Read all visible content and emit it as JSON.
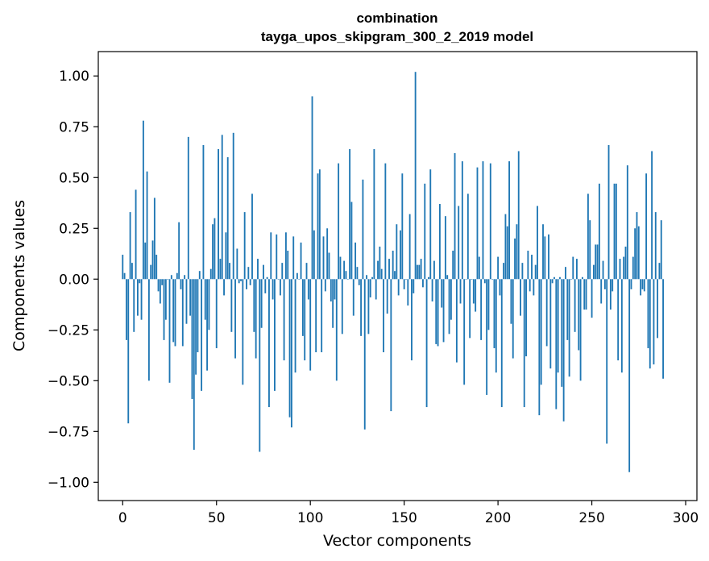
{
  "chart_data": {
    "type": "bar",
    "title": "combination",
    "subtitle": "tayga_upos_skipgram_300_2_2019 model",
    "xlabel": "Vector components",
    "ylabel": "Components values",
    "xlim": [
      -13,
      306
    ],
    "ylim": [
      -1.09,
      1.12
    ],
    "xticks": [
      0,
      50,
      100,
      150,
      200,
      250,
      300
    ],
    "xtick_labels": [
      "0",
      "50",
      "100",
      "150",
      "200",
      "250",
      "300"
    ],
    "yticks": [
      1.0,
      0.75,
      0.5,
      0.25,
      0.0,
      -0.25,
      -0.5,
      -0.75,
      -1.0
    ],
    "ytick_labels": [
      "1.00",
      "0.75",
      "0.50",
      "0.25",
      "0.00",
      "−0.25",
      "−0.50",
      "−0.75",
      "−1.00"
    ],
    "grid": false,
    "legend": "none",
    "bar_color": "#1f77b4",
    "x_start": 0,
    "values": [
      0.12,
      0.03,
      -0.3,
      -0.71,
      0.33,
      0.08,
      -0.26,
      0.44,
      -0.18,
      -0.02,
      -0.2,
      0.78,
      0.18,
      0.53,
      -0.5,
      0.07,
      0.19,
      0.4,
      0.12,
      -0.06,
      -0.12,
      -0.03,
      -0.3,
      -0.2,
      0.0,
      -0.51,
      0.02,
      -0.31,
      -0.33,
      0.03,
      0.28,
      -0.05,
      -0.33,
      0.02,
      -0.22,
      0.7,
      -0.18,
      -0.59,
      -0.84,
      -0.47,
      -0.36,
      0.04,
      -0.55,
      0.66,
      -0.2,
      -0.45,
      -0.25,
      0.05,
      0.27,
      0.3,
      -0.34,
      0.64,
      0.1,
      0.71,
      -0.08,
      0.23,
      0.6,
      0.08,
      -0.26,
      0.72,
      -0.39,
      0.15,
      -0.02,
      -0.01,
      -0.52,
      0.33,
      -0.05,
      0.06,
      -0.03,
      0.42,
      -0.26,
      -0.39,
      0.1,
      -0.85,
      -0.24,
      0.07,
      -0.07,
      0.01,
      -0.63,
      0.23,
      -0.1,
      -0.55,
      0.22,
      0.0,
      -0.08,
      0.08,
      -0.4,
      0.23,
      0.14,
      -0.68,
      -0.73,
      0.21,
      -0.46,
      0.03,
      0.0,
      0.18,
      -0.28,
      -0.4,
      0.08,
      -0.1,
      -0.45,
      0.9,
      0.24,
      -0.36,
      0.52,
      0.54,
      -0.36,
      0.21,
      -0.06,
      0.25,
      0.13,
      -0.11,
      -0.24,
      -0.1,
      -0.5,
      0.57,
      0.11,
      -0.27,
      0.09,
      0.04,
      0.0,
      0.64,
      0.38,
      -0.18,
      0.18,
      0.06,
      -0.03,
      -0.28,
      0.49,
      -0.74,
      0.02,
      -0.27,
      -0.09,
      0.01,
      0.64,
      -0.1,
      0.09,
      0.16,
      0.05,
      -0.36,
      0.57,
      -0.17,
      0.1,
      -0.65,
      0.14,
      0.04,
      0.27,
      -0.08,
      0.24,
      0.52,
      -0.05,
      0.0,
      -0.13,
      0.32,
      -0.4,
      -0.07,
      1.02,
      0.07,
      0.07,
      0.1,
      -0.04,
      0.47,
      -0.63,
      0.01,
      0.54,
      -0.11,
      0.09,
      -0.32,
      -0.33,
      0.37,
      -0.14,
      -0.31,
      0.31,
      0.02,
      -0.27,
      -0.2,
      0.14,
      0.62,
      -0.41,
      0.36,
      -0.12,
      0.58,
      -0.52,
      0.0,
      0.42,
      -0.29,
      0.0,
      -0.12,
      -0.16,
      0.55,
      0.11,
      -0.3,
      0.58,
      -0.02,
      -0.57,
      -0.25,
      0.57,
      0.0,
      -0.34,
      -0.46,
      0.11,
      -0.08,
      -0.63,
      0.08,
      0.32,
      0.26,
      0.58,
      -0.22,
      -0.39,
      0.2,
      0.27,
      0.63,
      -0.18,
      0.08,
      -0.63,
      -0.38,
      0.14,
      -0.06,
      0.12,
      -0.08,
      0.07,
      0.36,
      -0.67,
      -0.52,
      0.27,
      0.21,
      -0.33,
      0.22,
      -0.44,
      -0.02,
      0.01,
      -0.64,
      -0.46,
      0.01,
      -0.53,
      -0.7,
      0.06,
      -0.3,
      -0.48,
      0.0,
      0.11,
      -0.26,
      0.1,
      -0.35,
      -0.5,
      0.01,
      -0.15,
      -0.15,
      0.42,
      0.29,
      -0.19,
      0.07,
      0.17,
      0.17,
      0.47,
      -0.12,
      0.09,
      -0.05,
      -0.81,
      0.66,
      -0.15,
      -0.06,
      0.47,
      0.47,
      -0.4,
      0.1,
      -0.46,
      0.11,
      0.16,
      0.56,
      -0.95,
      -0.05,
      0.11,
      0.25,
      0.33,
      0.26,
      -0.08,
      -0.05,
      -0.06,
      0.52,
      -0.34,
      -0.44,
      0.63,
      -0.42,
      0.33,
      -0.29,
      0.08,
      0.29,
      -0.49
    ]
  }
}
